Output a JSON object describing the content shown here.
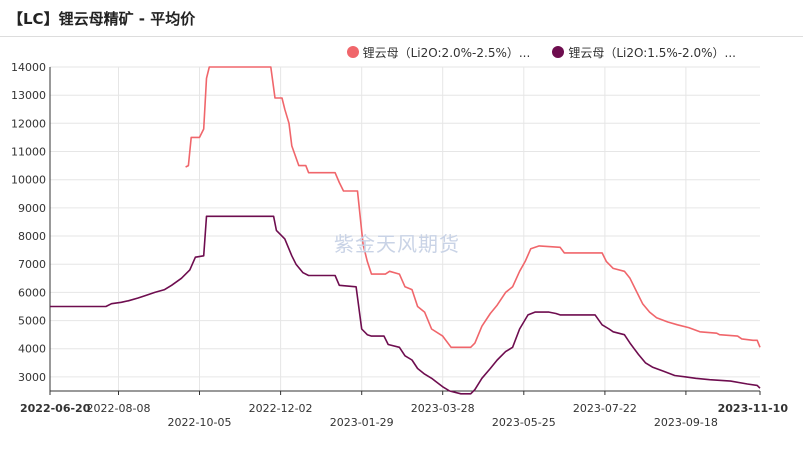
{
  "title": "【LC】锂云母精矿 - 平均价",
  "watermark": "紫金天风期货",
  "colors": {
    "series_1": "#f0666b",
    "series_2": "#6e0d4f",
    "grid": "#e6e6e6",
    "axis": "#333333"
  },
  "chart_data": {
    "type": "line",
    "title": "【LC】锂云母精矿 - 平均价",
    "xlabel": "",
    "ylabel": "",
    "x_range": [
      "2022-06-20",
      "2023-11-10"
    ],
    "ylim": [
      2500,
      14000
    ],
    "y_ticks": [
      3000,
      4000,
      5000,
      6000,
      7000,
      8000,
      9000,
      10000,
      11000,
      12000,
      13000,
      14000
    ],
    "x_ticks": [
      {
        "date": "2022-06-20",
        "label": "2022-06-20",
        "row": 0,
        "bold": true
      },
      {
        "date": "2022-08-08",
        "label": "2022-08-08",
        "row": 0,
        "bold": false
      },
      {
        "date": "2022-10-05",
        "label": "2022-10-05",
        "row": 1,
        "bold": false
      },
      {
        "date": "2022-12-02",
        "label": "2022-12-02",
        "row": 0,
        "bold": false
      },
      {
        "date": "2023-01-29",
        "label": "2023-01-29",
        "row": 1,
        "bold": false
      },
      {
        "date": "2023-03-28",
        "label": "2023-03-28",
        "row": 0,
        "bold": false
      },
      {
        "date": "2023-05-25",
        "label": "2023-05-25",
        "row": 1,
        "bold": false
      },
      {
        "date": "2023-07-22",
        "label": "2023-07-22",
        "row": 0,
        "bold": false
      },
      {
        "date": "2023-09-18",
        "label": "2023-09-18",
        "row": 1,
        "bold": false
      },
      {
        "date": "2023-11-10",
        "label": "2023-11-10",
        "row": 0,
        "bold": true
      }
    ],
    "grid": true,
    "legend_position": "top-right",
    "series": [
      {
        "name": "锂云母（Li2O:2.0%-2.5%）...",
        "color": "#f0666b",
        "points": [
          [
            "2022-09-25",
            10450
          ],
          [
            "2022-09-27",
            10500
          ],
          [
            "2022-09-29",
            11500
          ],
          [
            "2022-10-05",
            11500
          ],
          [
            "2022-10-08",
            11800
          ],
          [
            "2022-10-10",
            13600
          ],
          [
            "2022-10-12",
            14000
          ],
          [
            "2022-11-25",
            14000
          ],
          [
            "2022-11-28",
            12900
          ],
          [
            "2022-12-03",
            12900
          ],
          [
            "2022-12-05",
            12500
          ],
          [
            "2022-12-08",
            12000
          ],
          [
            "2022-12-10",
            11200
          ],
          [
            "2022-12-15",
            10500
          ],
          [
            "2022-12-20",
            10500
          ],
          [
            "2022-12-22",
            10250
          ],
          [
            "2023-01-10",
            10250
          ],
          [
            "2023-01-13",
            9900
          ],
          [
            "2023-01-16",
            9600
          ],
          [
            "2023-01-26",
            9600
          ],
          [
            "2023-01-30",
            7700
          ],
          [
            "2023-02-02",
            7100
          ],
          [
            "2023-02-05",
            6650
          ],
          [
            "2023-02-15",
            6650
          ],
          [
            "2023-02-18",
            6750
          ],
          [
            "2023-02-25",
            6650
          ],
          [
            "2023-03-01",
            6200
          ],
          [
            "2023-03-06",
            6100
          ],
          [
            "2023-03-10",
            5500
          ],
          [
            "2023-03-15",
            5300
          ],
          [
            "2023-03-20",
            4700
          ],
          [
            "2023-03-28",
            4450
          ],
          [
            "2023-04-03",
            4050
          ],
          [
            "2023-04-17",
            4050
          ],
          [
            "2023-04-20",
            4200
          ],
          [
            "2023-04-25",
            4800
          ],
          [
            "2023-05-01",
            5250
          ],
          [
            "2023-05-06",
            5550
          ],
          [
            "2023-05-12",
            6000
          ],
          [
            "2023-05-17",
            6200
          ],
          [
            "2023-05-22",
            6750
          ],
          [
            "2023-05-26",
            7100
          ],
          [
            "2023-05-30",
            7550
          ],
          [
            "2023-06-05",
            7650
          ],
          [
            "2023-06-20",
            7600
          ],
          [
            "2023-06-23",
            7400
          ],
          [
            "2023-07-20",
            7400
          ],
          [
            "2023-07-23",
            7100
          ],
          [
            "2023-07-28",
            6850
          ],
          [
            "2023-08-05",
            6750
          ],
          [
            "2023-08-09",
            6500
          ],
          [
            "2023-08-13",
            6100
          ],
          [
            "2023-08-18",
            5600
          ],
          [
            "2023-08-23",
            5300
          ],
          [
            "2023-08-28",
            5100
          ],
          [
            "2023-09-05",
            4950
          ],
          [
            "2023-09-12",
            4850
          ],
          [
            "2023-09-20",
            4750
          ],
          [
            "2023-09-28",
            4600
          ],
          [
            "2023-10-10",
            4550
          ],
          [
            "2023-10-12",
            4500
          ],
          [
            "2023-10-25",
            4450
          ],
          [
            "2023-10-28",
            4350
          ],
          [
            "2023-11-05",
            4300
          ],
          [
            "2023-11-08",
            4300
          ],
          [
            "2023-11-10",
            4050
          ]
        ]
      },
      {
        "name": "锂云母（Li2O:1.5%-2.0%）...",
        "color": "#6e0d4f",
        "points": [
          [
            "2022-06-20",
            5500
          ],
          [
            "2022-07-30",
            5500
          ],
          [
            "2022-08-03",
            5600
          ],
          [
            "2022-08-10",
            5650
          ],
          [
            "2022-08-15",
            5700
          ],
          [
            "2022-08-22",
            5800
          ],
          [
            "2022-08-28",
            5900
          ],
          [
            "2022-09-03",
            6000
          ],
          [
            "2022-09-10",
            6100
          ],
          [
            "2022-09-15",
            6250
          ],
          [
            "2022-09-22",
            6500
          ],
          [
            "2022-09-28",
            6800
          ],
          [
            "2022-10-02",
            7250
          ],
          [
            "2022-10-08",
            7300
          ],
          [
            "2022-10-10",
            8700
          ],
          [
            "2022-11-27",
            8700
          ],
          [
            "2022-11-29",
            8200
          ],
          [
            "2022-12-05",
            7900
          ],
          [
            "2022-12-10",
            7300
          ],
          [
            "2022-12-13",
            7000
          ],
          [
            "2022-12-18",
            6700
          ],
          [
            "2022-12-22",
            6600
          ],
          [
            "2023-01-10",
            6600
          ],
          [
            "2023-01-13",
            6250
          ],
          [
            "2023-01-25",
            6200
          ],
          [
            "2023-01-29",
            4700
          ],
          [
            "2023-02-02",
            4500
          ],
          [
            "2023-02-05",
            4450
          ],
          [
            "2023-02-14",
            4450
          ],
          [
            "2023-02-17",
            4150
          ],
          [
            "2023-02-25",
            4050
          ],
          [
            "2023-03-01",
            3750
          ],
          [
            "2023-03-06",
            3600
          ],
          [
            "2023-03-10",
            3300
          ],
          [
            "2023-03-15",
            3100
          ],
          [
            "2023-03-20",
            2950
          ],
          [
            "2023-03-28",
            2650
          ],
          [
            "2023-04-02",
            2500
          ],
          [
            "2023-04-10",
            2400
          ],
          [
            "2023-04-17",
            2400
          ],
          [
            "2023-04-20",
            2550
          ],
          [
            "2023-04-25",
            2950
          ],
          [
            "2023-05-01",
            3300
          ],
          [
            "2023-05-06",
            3600
          ],
          [
            "2023-05-12",
            3900
          ],
          [
            "2023-05-17",
            4050
          ],
          [
            "2023-05-22",
            4700
          ],
          [
            "2023-05-28",
            5200
          ],
          [
            "2023-06-02",
            5300
          ],
          [
            "2023-06-12",
            5300
          ],
          [
            "2023-06-17",
            5250
          ],
          [
            "2023-06-20",
            5200
          ],
          [
            "2023-07-15",
            5200
          ],
          [
            "2023-07-20",
            4850
          ],
          [
            "2023-07-25",
            4700
          ],
          [
            "2023-07-28",
            4600
          ],
          [
            "2023-08-05",
            4500
          ],
          [
            "2023-08-09",
            4200
          ],
          [
            "2023-08-15",
            3800
          ],
          [
            "2023-08-20",
            3500
          ],
          [
            "2023-08-25",
            3350
          ],
          [
            "2023-09-02",
            3200
          ],
          [
            "2023-09-10",
            3050
          ],
          [
            "2023-09-18",
            3000
          ],
          [
            "2023-09-25",
            2950
          ],
          [
            "2023-10-05",
            2900
          ],
          [
            "2023-10-20",
            2850
          ],
          [
            "2023-11-01",
            2750
          ],
          [
            "2023-11-08",
            2700
          ],
          [
            "2023-11-10",
            2600
          ]
        ]
      }
    ]
  }
}
